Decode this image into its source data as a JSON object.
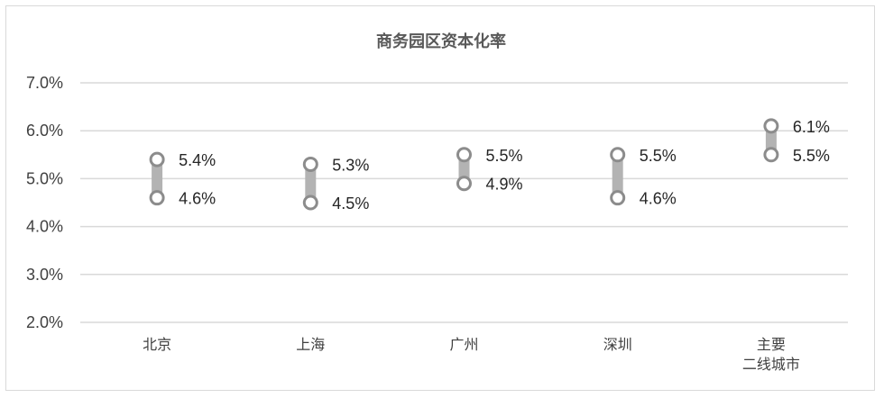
{
  "chart_data": {
    "type": "range",
    "title": "商务园区资本化率",
    "categories": [
      [
        "北京"
      ],
      [
        "上海"
      ],
      [
        "广州"
      ],
      [
        "深圳"
      ],
      [
        "主要",
        "二线城市"
      ]
    ],
    "series": [
      {
        "values": [
          5.4,
          5.3,
          5.5,
          5.5,
          6.1
        ],
        "labels": [
          "5.4%",
          "5.3%",
          "5.5%",
          "5.5%",
          "6.1%"
        ]
      },
      {
        "values": [
          4.6,
          4.5,
          4.9,
          4.6,
          5.5
        ],
        "labels": [
          "4.6%",
          "4.5%",
          "4.9%",
          "4.6%",
          "5.5%"
        ]
      }
    ],
    "yticks": [
      "2.0%",
      "3.0%",
      "4.0%",
      "5.0%",
      "6.0%",
      "7.0%"
    ],
    "ylim": [
      2.0,
      7.0
    ],
    "grid": true,
    "colors": {
      "bar": "#b3b3b3",
      "marker": "#8c8c8c",
      "grid": "#d9d9d9"
    }
  }
}
